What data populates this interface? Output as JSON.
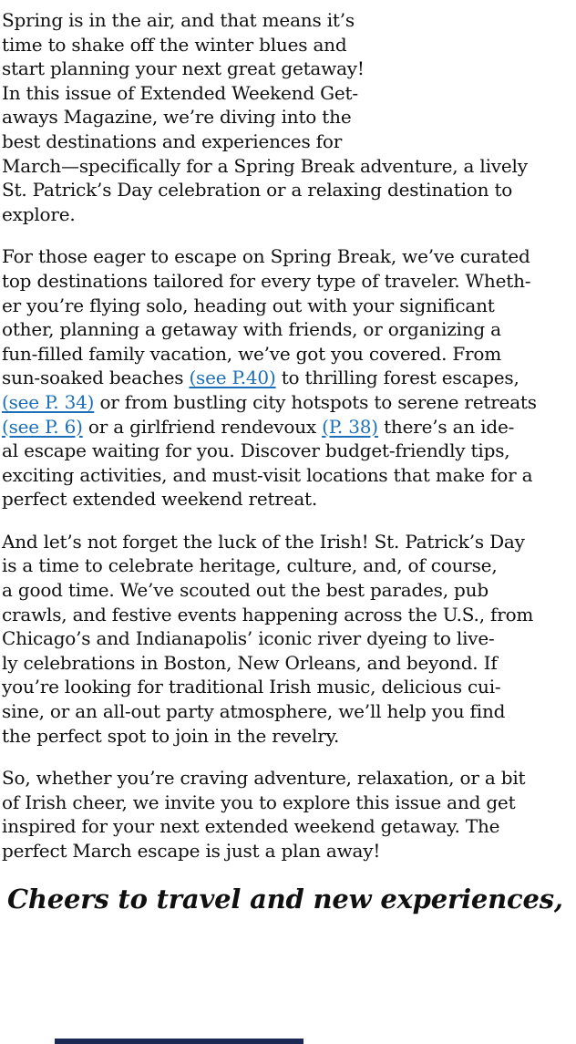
{
  "page": {
    "colors": {
      "background": "#ffffff",
      "text": "#101010",
      "link": "#1c6fb8",
      "bottom_bar": "#1b2a55"
    }
  },
  "article": {
    "paragraphs": [
      {
        "lines": [
          [
            {
              "text": "Spring is in the air, and that means it’s"
            }
          ],
          [
            {
              "text": "time to shake off the winter blues and"
            }
          ],
          [
            {
              "text": "start planning your next great getaway!"
            }
          ],
          [
            {
              "text": "In this issue of Extended Weekend Get-"
            }
          ],
          [
            {
              "text": "aways Magazine, we’re diving into the"
            }
          ],
          [
            {
              "text": "best destinations and experiences for"
            }
          ],
          [
            {
              "text": "March—specifically for a Spring Break adventure, a lively"
            }
          ],
          [
            {
              "text": "St. Patrick’s Day celebration or a relaxing destination to"
            }
          ],
          [
            {
              "text": "explore."
            }
          ]
        ]
      },
      {
        "lines": [
          [
            {
              "text": "For those eager to escape on Spring Break, we’ve curated"
            }
          ],
          [
            {
              "text": "top destinations tailored for every type of traveler. Wheth-"
            }
          ],
          [
            {
              "text": "er you’re flying solo, heading out with your significant"
            }
          ],
          [
            {
              "text": "other, planning a getaway with friends, or organizing a"
            }
          ],
          [
            {
              "text": "fun-filled family vacation, we’ve got you covered. From"
            }
          ],
          [
            {
              "text": "sun-soaked beaches "
            },
            {
              "text": "(see P.40)",
              "link": true
            },
            {
              "text": " to thrilling forest escapes,"
            }
          ],
          [
            {
              "text": "(see P. 34)",
              "link": true
            },
            {
              "text": " or from bustling city hotspots to serene retreats"
            }
          ],
          [
            {
              "text": "(see P. 6)",
              "link": true
            },
            {
              "text": " or a girlfriend rendevoux "
            },
            {
              "text": "(P. 38)",
              "link": true
            },
            {
              "text": " there’s an ide-"
            }
          ],
          [
            {
              "text": "al escape waiting for you. Discover budget-friendly tips,"
            }
          ],
          [
            {
              "text": "exciting activities, and must-visit locations that make for a"
            }
          ],
          [
            {
              "text": "perfect extended weekend retreat."
            }
          ]
        ]
      },
      {
        "lines": [
          [
            {
              "text": "And let’s not forget the luck of the Irish! St. Patrick’s Day"
            }
          ],
          [
            {
              "text": "is a time to celebrate heritage, culture, and, of course,"
            }
          ],
          [
            {
              "text": "a good time. We’ve scouted out the best parades, pub"
            }
          ],
          [
            {
              "text": "crawls, and festive events happening across the U.S., from"
            }
          ],
          [
            {
              "text": "Chicago’s and Indianapolis’ iconic river dyeing to live-"
            }
          ],
          [
            {
              "text": "ly celebrations in Boston, New Orleans, and beyond. If"
            }
          ],
          [
            {
              "text": "you’re looking for traditional Irish music, delicious cui-"
            }
          ],
          [
            {
              "text": "sine, or an all-out party atmosphere, we’ll help you find"
            }
          ],
          [
            {
              "text": "the perfect spot to join in the revelry."
            }
          ]
        ]
      },
      {
        "lines": [
          [
            {
              "text": "So, whether you’re craving adventure, relaxation, or a bit"
            }
          ],
          [
            {
              "text": "of Irish cheer, we invite you to explore this issue and get"
            }
          ],
          [
            {
              "text": "inspired for your next extended weekend getaway. The"
            }
          ],
          [
            {
              "text": "perfect March escape is just a plan away!"
            }
          ]
        ]
      }
    ],
    "closing": "Cheers to travel and new experiences,"
  }
}
